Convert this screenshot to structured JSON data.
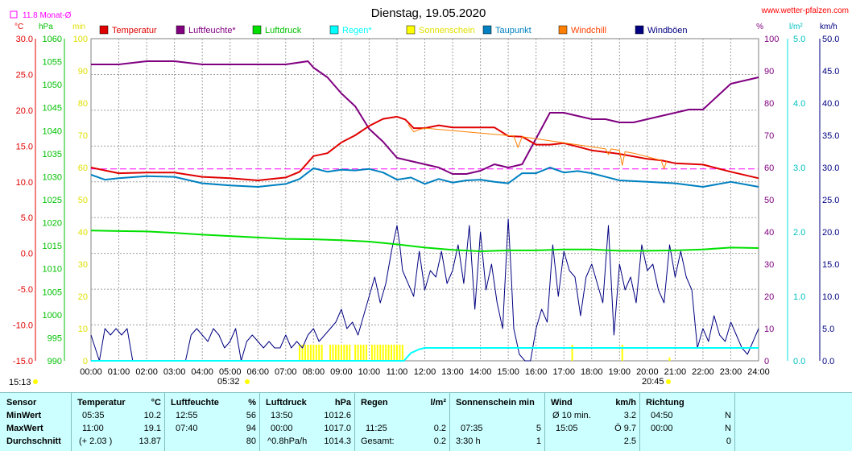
{
  "header": {
    "title": "Dienstag, 19.05.2020",
    "site": "www.wetter-pfalzen.com",
    "monthly_avg": "11.8 Monat-Ø",
    "left_time": "15:13",
    "sunrise": "05:32",
    "sunset": "20:45"
  },
  "colors": {
    "temperature": "#e00000",
    "humidity": "#800080",
    "pressure": "#00e000",
    "rain": "#00ffff",
    "sunshine": "#ffff00",
    "dewpoint": "#0080c0",
    "windchill": "#ff8000",
    "gusts": "#000080",
    "monthavg": "#ff00ff"
  },
  "chart_data": {
    "type": "line",
    "title": "Dienstag, 19.05.2020",
    "x_ticks": [
      "00:00",
      "01:00",
      "02:00",
      "03:00",
      "04:00",
      "05:00",
      "06:00",
      "07:00",
      "08:00",
      "09:00",
      "10:00",
      "11:00",
      "12:00",
      "13:00",
      "14:00",
      "15:00",
      "16:00",
      "17:00",
      "18:00",
      "19:00",
      "20:00",
      "21:00",
      "22:00",
      "23:00",
      "24:00"
    ],
    "axes": {
      "temp": {
        "unit": "°C",
        "range": [
          -15,
          30
        ],
        "ticks": [
          "30.0",
          "25.0",
          "20.0",
          "15.0",
          "10.0",
          "5.0",
          "0.0",
          "-5.0",
          "-10.0",
          "-15.0"
        ]
      },
      "pressure": {
        "unit": "hPa",
        "range": [
          990,
          1060
        ],
        "ticks": [
          "1060",
          "1055",
          "1050",
          "1045",
          "1040",
          "1035",
          "1030",
          "1025",
          "1020",
          "1015",
          "1010",
          "1005",
          "1000",
          "995",
          "990"
        ]
      },
      "sunshine": {
        "unit": "min",
        "range": [
          0,
          100
        ],
        "ticks": [
          "100",
          "90",
          "80",
          "70",
          "60",
          "50",
          "40",
          "30",
          "20",
          "10",
          "0"
        ]
      },
      "humidity": {
        "unit": "%",
        "range": [
          0,
          100
        ],
        "ticks": [
          "100",
          "90",
          "80",
          "70",
          "60",
          "50",
          "40",
          "30",
          "20",
          "10",
          "0"
        ]
      },
      "rain": {
        "unit": "l/m²",
        "range": [
          0,
          5
        ],
        "ticks": [
          "5.0",
          "4.0",
          "3.0",
          "2.0",
          "1.0",
          "0.0"
        ]
      },
      "wind": {
        "unit": "km/h",
        "range": [
          0,
          50
        ],
        "ticks": [
          "50.0",
          "45.0",
          "40.0",
          "35.0",
          "30.0",
          "25.0",
          "20.0",
          "15.0",
          "10.0",
          "5.0",
          "0.0"
        ]
      }
    },
    "legend": [
      "Temperatur",
      "Luftfeuchte*",
      "Luftdruck",
      "Regen*",
      "Sonnenschein",
      "Taupunkt",
      "Windchill",
      "Windböen"
    ],
    "monthly_avg_temp": 11.8,
    "series": [
      {
        "name": "Temperatur",
        "axis": "temp",
        "x": [
          0,
          0.5,
          1,
          2,
          3,
          4,
          5,
          6,
          7,
          7.5,
          8,
          8.5,
          9,
          9.5,
          10,
          10.5,
          11,
          11.3,
          11.6,
          12,
          12.5,
          13,
          14,
          14.5,
          15,
          15.5,
          16,
          16.5,
          17,
          17.5,
          18,
          19,
          20,
          20.5,
          21,
          22,
          23,
          24
        ],
        "y": [
          12.0,
          11.6,
          11.2,
          11.3,
          11.3,
          10.7,
          10.5,
          10.2,
          10.6,
          11.4,
          13.6,
          14.0,
          15.5,
          16.5,
          17.8,
          18.8,
          19.1,
          18.7,
          17.5,
          17.5,
          17.9,
          17.6,
          17.6,
          17.6,
          16.4,
          16.3,
          15.2,
          15.2,
          15.4,
          14.9,
          14.4,
          13.9,
          13.2,
          13.0,
          12.6,
          12.4,
          11.4,
          10.5
        ]
      },
      {
        "name": "Luftfeuchte*",
        "axis": "humidity",
        "x": [
          0,
          1,
          2,
          3,
          4,
          5,
          6,
          7,
          7.8,
          8,
          8.5,
          9,
          9.5,
          10,
          10.5,
          11,
          11.5,
          12,
          12.5,
          13,
          13.5,
          14,
          14.5,
          15,
          15.5,
          16,
          16.5,
          17,
          17.5,
          18,
          18.5,
          19,
          19.5,
          20,
          21,
          21.5,
          22,
          23,
          24
        ],
        "y": [
          92,
          92,
          93,
          93,
          92,
          92,
          92,
          92,
          93,
          91,
          88,
          83,
          79,
          72,
          68,
          63,
          62,
          61,
          60,
          58,
          58,
          59,
          61,
          60,
          61,
          69,
          77,
          77,
          76,
          75,
          75,
          74,
          74,
          75,
          77,
          78,
          78,
          86,
          88
        ]
      },
      {
        "name": "Luftdruck",
        "axis": "pressure",
        "x": [
          0,
          1,
          2,
          3,
          4,
          5,
          6,
          7,
          8,
          9,
          10,
          11,
          12,
          13,
          14,
          15,
          16,
          17,
          18,
          19,
          20,
          21,
          22,
          23,
          24
        ],
        "y": [
          1018.3,
          1018.2,
          1018.1,
          1017.8,
          1017.4,
          1017.1,
          1016.8,
          1016.5,
          1016.4,
          1016.2,
          1015.9,
          1015.3,
          1014.6,
          1014.1,
          1013.8,
          1014.0,
          1014.0,
          1014.2,
          1014.2,
          1013.9,
          1013.9,
          1014.0,
          1014.2,
          1014.6,
          1014.5
        ]
      },
      {
        "name": "Regen*",
        "axis": "rain",
        "x": [
          0,
          11.25,
          11.5,
          11.8,
          12,
          24
        ],
        "y": [
          0,
          0,
          0.12,
          0.18,
          0.2,
          0.2
        ]
      },
      {
        "name": "Taupunkt",
        "axis": "temp",
        "x": [
          0,
          0.5,
          1,
          2,
          3,
          4,
          5,
          6,
          7,
          7.5,
          8,
          8.5,
          9,
          9.5,
          10,
          10.5,
          11,
          11.5,
          12,
          12.5,
          13,
          13.5,
          14,
          14.5,
          15,
          15.5,
          16,
          16.5,
          17,
          17.5,
          18,
          19,
          20,
          21,
          22,
          23,
          24
        ],
        "y": [
          11.0,
          10.3,
          10.5,
          10.8,
          10.7,
          9.8,
          9.5,
          9.3,
          9.7,
          10.4,
          11.9,
          11.4,
          11.7,
          11.6,
          11.8,
          11.3,
          10.3,
          10.6,
          9.7,
          10.4,
          9.9,
          10.2,
          10.3,
          10.0,
          9.8,
          11.2,
          11.2,
          12.0,
          11.3,
          11.5,
          11.2,
          10.2,
          10.0,
          9.8,
          9.3,
          10.0,
          9.3
        ]
      },
      {
        "name": "Windchill",
        "axis": "temp",
        "x": [
          11.4,
          11.6,
          11.8,
          12,
          15.2,
          15.35,
          15.5,
          18.5,
          18.6,
          18.7,
          19,
          19.1,
          19.2,
          19.5,
          20.5,
          20.6,
          20.7
        ],
        "y": [
          18.0,
          17.0,
          17.3,
          17.5,
          16.4,
          14.8,
          16.3,
          14.6,
          13.8,
          14.6,
          14.4,
          12.3,
          14.2,
          14.0,
          13.0,
          11.8,
          13.0
        ]
      },
      {
        "name": "Windböen",
        "axis": "wind",
        "x": [
          0,
          0.15,
          0.3,
          0.5,
          0.7,
          0.9,
          1.1,
          1.3,
          1.5,
          3.4,
          3.6,
          3.8,
          4,
          4.2,
          4.4,
          4.6,
          4.8,
          5,
          5.2,
          5.4,
          5.6,
          5.8,
          6,
          6.2,
          6.4,
          6.6,
          6.8,
          7,
          7.2,
          7.4,
          7.6,
          7.8,
          8,
          8.2,
          8.4,
          8.6,
          8.8,
          9,
          9.2,
          9.4,
          9.6,
          9.8,
          10,
          10.2,
          10.4,
          10.6,
          10.8,
          11,
          11.1,
          11.2,
          11.4,
          11.6,
          11.8,
          12,
          12.2,
          12.4,
          12.6,
          12.8,
          13,
          13.2,
          13.4,
          13.6,
          13.8,
          14,
          14.2,
          14.4,
          14.6,
          14.8,
          15,
          15.1,
          15.2,
          15.4,
          15.6,
          15.8,
          16,
          16.2,
          16.4,
          16.6,
          16.8,
          17,
          17.2,
          17.4,
          17.6,
          17.8,
          18,
          18.2,
          18.4,
          18.6,
          18.8,
          19,
          19.2,
          19.4,
          19.6,
          19.8,
          20,
          20.2,
          20.4,
          20.6,
          20.8,
          21,
          21.2,
          21.4,
          21.6,
          21.8,
          22,
          22.2,
          22.4,
          22.6,
          22.8,
          23,
          23.2,
          23.4,
          23.6,
          23.8,
          24
        ],
        "y": [
          4,
          2,
          0,
          5,
          4,
          5,
          4,
          5,
          0,
          0,
          4,
          5,
          4,
          3,
          5,
          4,
          2,
          3,
          5,
          0,
          3,
          4,
          3,
          2,
          3,
          2,
          2,
          4,
          2,
          3,
          2,
          4,
          5,
          3,
          4,
          5,
          6,
          8,
          5,
          6,
          4,
          7,
          10,
          13,
          9,
          12,
          17,
          21,
          18,
          14,
          12,
          10,
          17,
          11,
          14,
          13,
          17,
          12,
          14,
          18,
          12,
          21,
          8,
          20,
          11,
          15,
          9,
          5,
          22,
          14,
          5,
          1,
          0,
          0,
          5,
          8,
          6,
          18,
          10,
          17,
          14,
          13,
          7,
          13,
          15,
          12,
          9,
          21,
          4,
          15,
          11,
          13,
          9,
          18,
          14,
          15,
          11,
          9,
          18,
          13,
          17,
          13,
          11,
          2,
          5,
          3,
          7,
          4,
          3,
          6,
          4,
          2,
          1,
          3,
          5
        ]
      },
      {
        "name": "Sonnenschein",
        "axis": "sunshine",
        "bars": [
          7.5,
          7.6,
          7.7,
          7.8,
          7.9,
          8.0,
          8.1,
          8.2,
          8.3,
          8.6,
          8.7,
          8.8,
          8.9,
          9.0,
          9.1,
          9.2,
          9.3,
          9.5,
          9.6,
          9.7,
          9.8,
          9.9,
          10.1,
          10.2,
          10.3,
          10.4,
          10.5,
          10.6,
          10.7,
          10.8,
          10.9,
          11.0,
          11.1,
          11.2,
          17.3,
          19.1,
          20.8
        ],
        "values": [
          5,
          5,
          5,
          5,
          5,
          5,
          5,
          5,
          5,
          5,
          5,
          5,
          5,
          5,
          5,
          5,
          5,
          5,
          5,
          5,
          5,
          5,
          5,
          5,
          5,
          5,
          5,
          5,
          5,
          5,
          5,
          5,
          5,
          5,
          5,
          5,
          1
        ]
      }
    ]
  },
  "stats": {
    "headers": {
      "sensor": "Sensor",
      "temp": "Temperatur",
      "temp_unit": "°C",
      "hum": "Luftfeuchte",
      "hum_unit": "%",
      "press": "Luftdruck",
      "press_unit": "hPa",
      "rain": "Regen",
      "rain_unit": "l/m²",
      "sun": "Sonnenschein min",
      "wind": "Wind",
      "wind_unit": "km/h",
      "dir": "Richtung"
    },
    "rows": [
      {
        "label": "MinWert",
        "temp_time": "05:35",
        "temp_val": "10.2",
        "hum_time": "12:55",
        "hum_val": "56",
        "press_time": "13:50",
        "press_val": "1012.6",
        "rain_time": "",
        "rain_val": "",
        "sun_time": "",
        "sun_val": "",
        "wind_time": "Ø 10 min.",
        "wind_val": "3.2",
        "dir_time": "04:50",
        "dir_val": "N"
      },
      {
        "label": "MaxWert",
        "temp_time": "11:00",
        "temp_val": "19.1",
        "hum_time": "07:40",
        "hum_val": "94",
        "press_time": "00:00",
        "press_val": "1017.0",
        "rain_time": "11:25",
        "rain_val": "0.2",
        "sun_time": "07:35",
        "sun_val": "5",
        "wind_time": "15:05",
        "wind_val": "Ö 9.7",
        "dir_time": "00:00",
        "dir_val": "N"
      },
      {
        "label": "Durchschnitt",
        "temp_time": "(+ 2.03 )",
        "temp_val": "13.87",
        "hum_time": "",
        "hum_val": "80",
        "press_time": "^0.8hPa/h",
        "press_val": "1014.3",
        "rain_time": "Gesamt:",
        "rain_val": "0.2",
        "sun_time": "3:30 h",
        "sun_val": "1",
        "wind_time": "",
        "wind_val": "2.5",
        "dir_time": "",
        "dir_val": "0"
      }
    ]
  }
}
